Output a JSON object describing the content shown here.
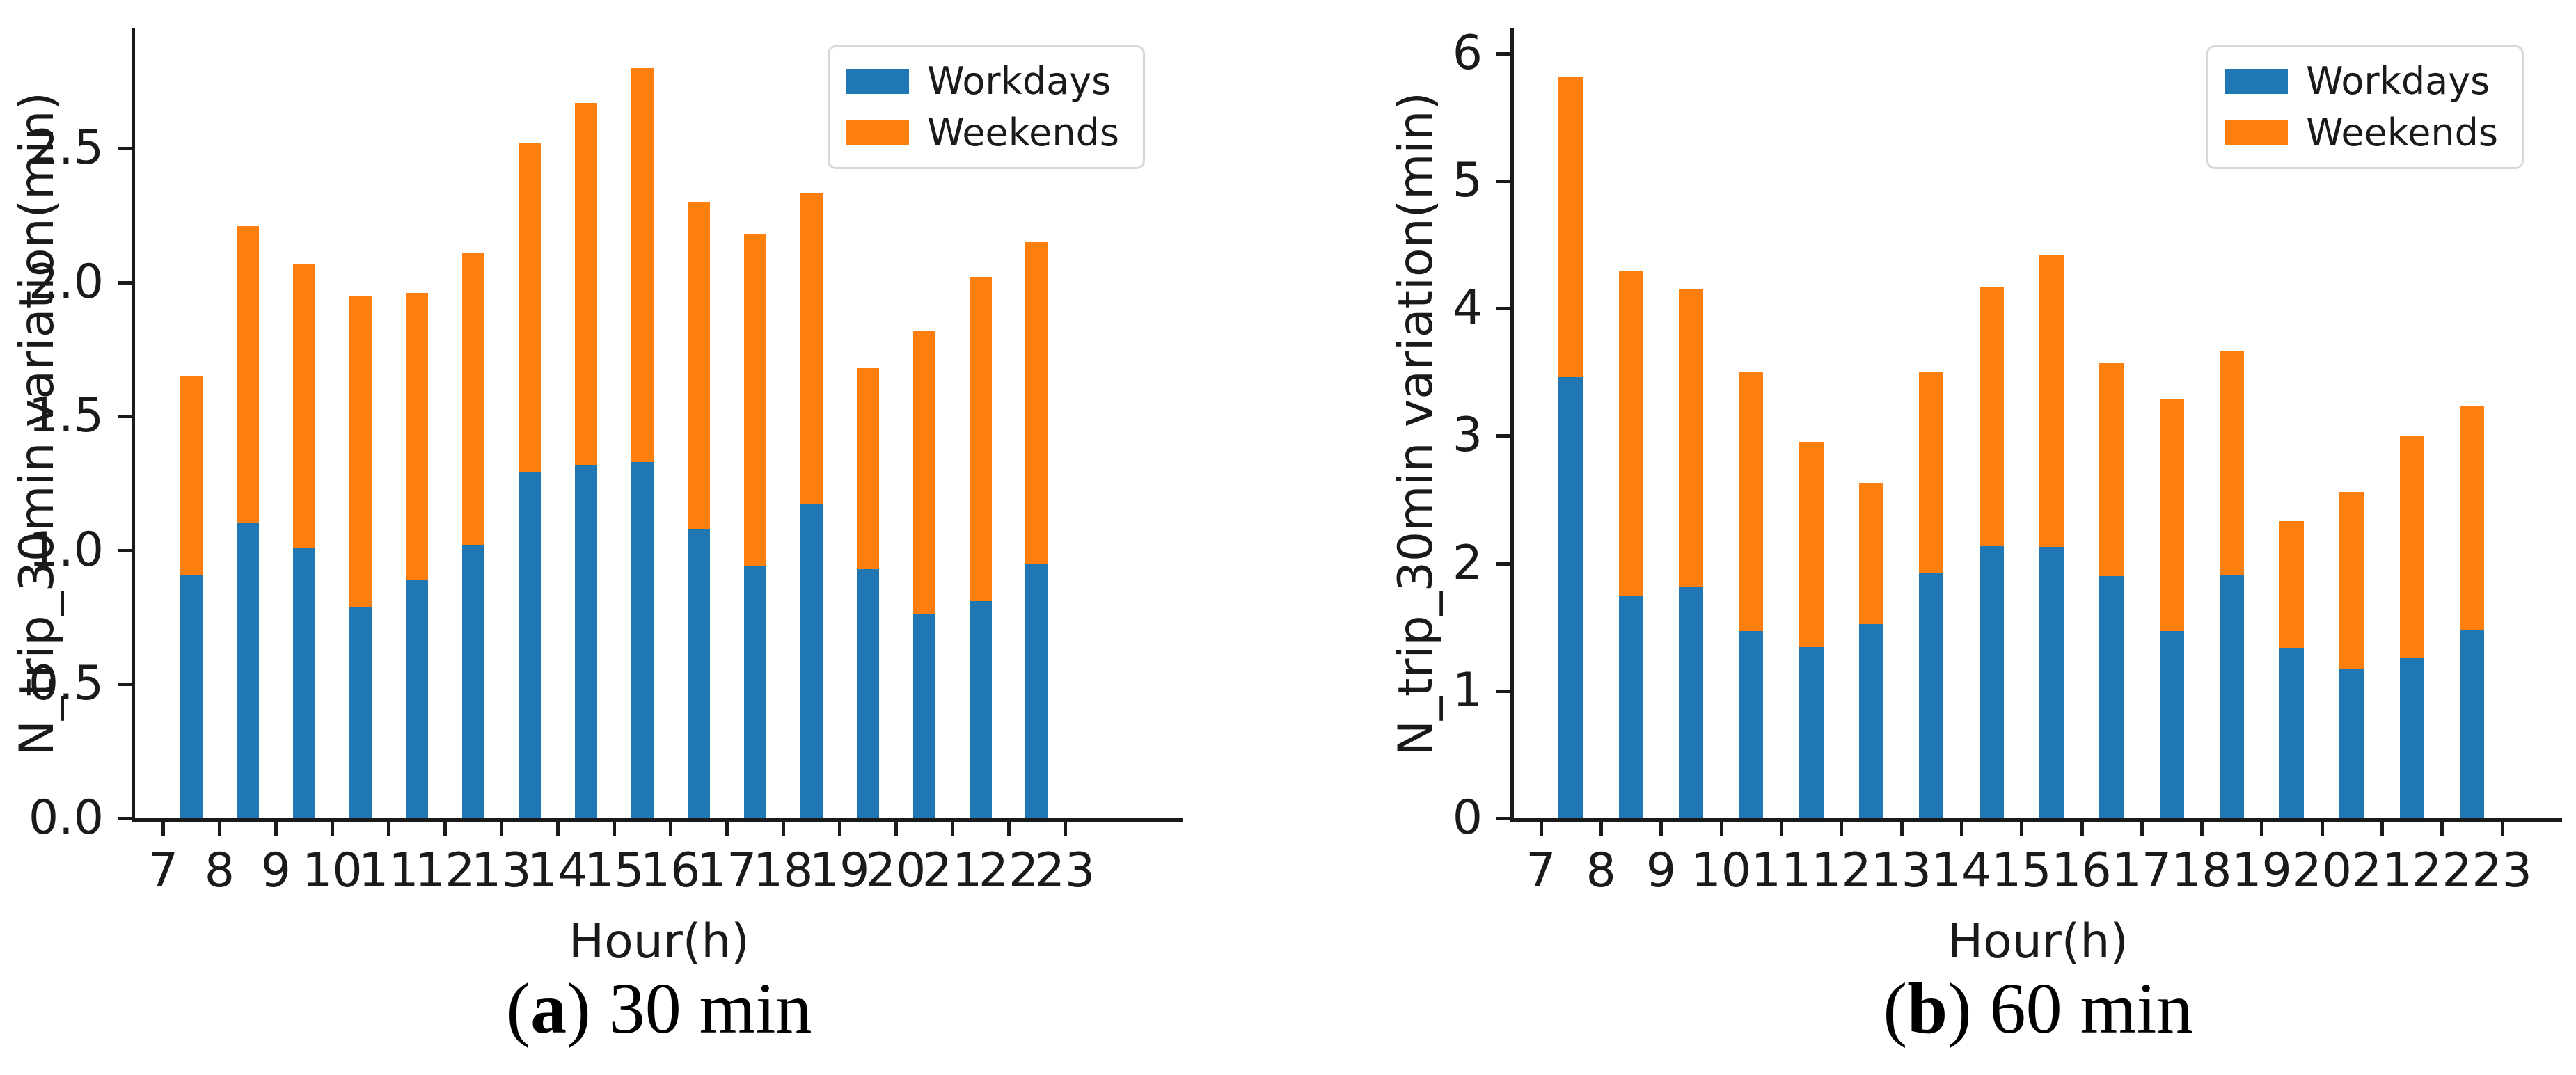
{
  "figure": {
    "background": "#ffffff",
    "colors": {
      "workdays": "#1f77b4",
      "weekends": "#ff7f0e",
      "axis": "#1a1a1a",
      "legend_border": "#d8d8d8"
    },
    "legend": {
      "items": [
        {
          "label": "Workdays",
          "color_key": "workdays"
        },
        {
          "label": "Weekends",
          "color_key": "weekends"
        }
      ],
      "position": "upper right"
    }
  },
  "chart_data": [
    {
      "id": "a",
      "type": "bar",
      "stacked": true,
      "caption": {
        "pre": "(",
        "letter": "a",
        "post": ") 30 min"
      },
      "xlabel": "Hour(h)",
      "ylabel": "N_trip_30min variation(min)",
      "bar_hours": [
        7,
        8,
        9,
        10,
        11,
        12,
        13,
        14,
        15,
        16,
        17,
        18,
        19,
        20,
        21,
        22
      ],
      "x_ticks": [
        7,
        8,
        9,
        10,
        11,
        12,
        13,
        14,
        15,
        16,
        17,
        18,
        19,
        20,
        21,
        22,
        23
      ],
      "y_ticks": [
        0.0,
        0.5,
        1.0,
        1.5,
        2.0,
        2.5
      ],
      "y_tick_labels": [
        "0.0",
        "0.5",
        "1.0",
        "1.5",
        "2.0",
        "2.5"
      ],
      "xlim": [
        6.5,
        25.1
      ],
      "ylim": [
        0,
        2.95
      ],
      "grid": false,
      "series": [
        {
          "name": "Workdays",
          "values": [
            0.91,
            1.1,
            1.01,
            0.79,
            0.89,
            1.02,
            1.29,
            1.32,
            1.33,
            1.08,
            0.94,
            1.17,
            0.93,
            0.76,
            0.81,
            0.95
          ]
        },
        {
          "name": "Weekends",
          "values": [
            0.74,
            1.11,
            1.06,
            1.16,
            1.07,
            1.09,
            1.23,
            1.35,
            1.47,
            1.22,
            1.24,
            1.16,
            0.75,
            1.06,
            1.21,
            1.2
          ]
        }
      ],
      "stack_totals": [
        1.65,
        2.21,
        2.07,
        1.95,
        1.96,
        2.11,
        2.52,
        2.67,
        2.8,
        2.3,
        2.18,
        2.33,
        1.68,
        1.82,
        2.02,
        2.15
      ]
    },
    {
      "id": "b",
      "type": "bar",
      "stacked": true,
      "caption": {
        "pre": "(",
        "letter": "b",
        "post": ") 60 min"
      },
      "xlabel": "Hour(h)",
      "ylabel": "N_trip_30min variation(min)",
      "bar_hours": [
        7,
        8,
        9,
        10,
        11,
        12,
        13,
        14,
        15,
        16,
        17,
        18,
        19,
        20,
        21,
        22
      ],
      "x_ticks": [
        7,
        8,
        9,
        10,
        11,
        12,
        13,
        14,
        15,
        16,
        17,
        18,
        19,
        20,
        21,
        22,
        23
      ],
      "y_ticks": [
        0,
        1,
        2,
        3,
        4,
        5,
        6
      ],
      "y_tick_labels": [
        "0",
        "1",
        "2",
        "3",
        "4",
        "5",
        "6"
      ],
      "xlim": [
        6.55,
        24.0
      ],
      "ylim": [
        0,
        6.2
      ],
      "grid": false,
      "series": [
        {
          "name": "Workdays",
          "values": [
            3.46,
            1.74,
            1.82,
            1.47,
            1.34,
            1.52,
            1.92,
            2.14,
            2.13,
            1.9,
            1.47,
            1.91,
            1.33,
            1.17,
            1.26,
            1.48
          ]
        },
        {
          "name": "Weekends",
          "values": [
            2.36,
            2.55,
            2.33,
            2.03,
            1.61,
            1.11,
            1.58,
            2.03,
            2.29,
            1.67,
            1.82,
            1.75,
            1.0,
            1.39,
            1.74,
            1.75
          ]
        }
      ],
      "stack_totals": [
        5.82,
        4.29,
        4.15,
        3.5,
        2.95,
        2.63,
        3.5,
        4.17,
        4.42,
        3.57,
        3.29,
        3.66,
        2.33,
        2.56,
        3.0,
        3.23
      ]
    }
  ]
}
